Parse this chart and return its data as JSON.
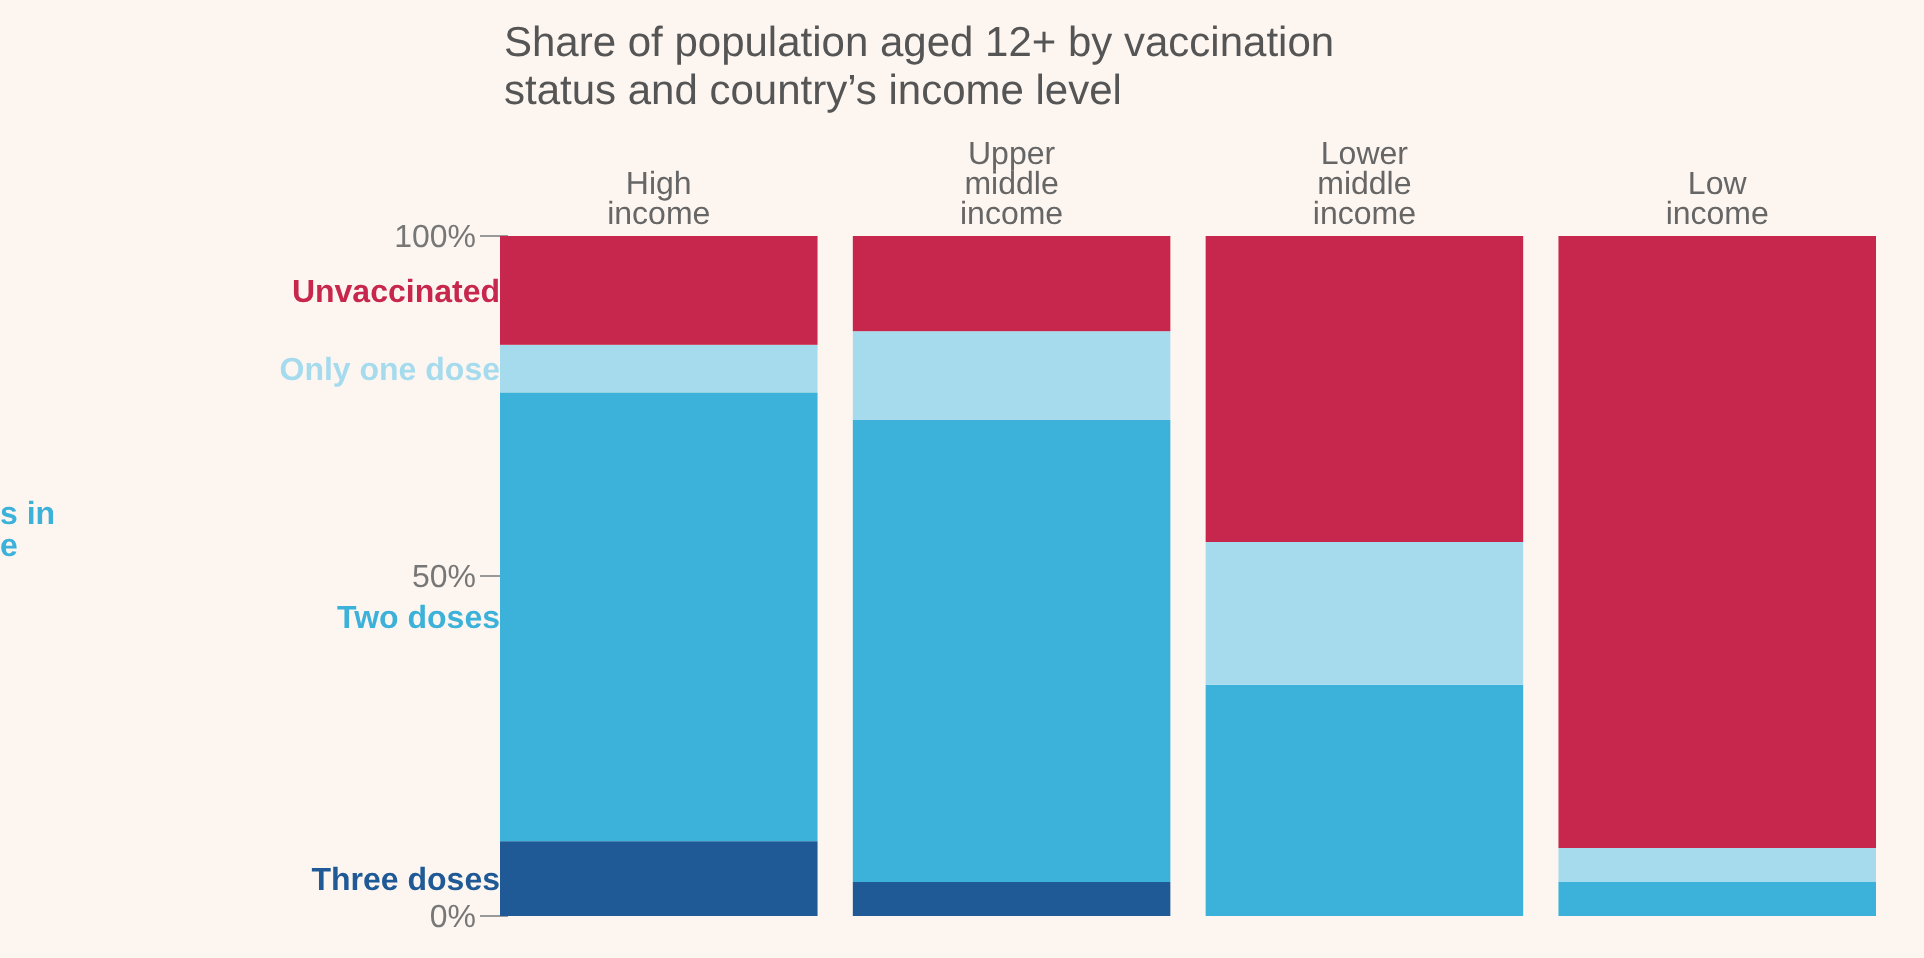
{
  "chart_data": {
    "type": "bar",
    "stacked": true,
    "title": "Share of population aged 12+ by vaccination status and country’s income level",
    "categories": [
      "High income",
      "Upper middle income",
      "Lower middle income",
      "Low income"
    ],
    "series": [
      {
        "name": "Three doses",
        "color": "#1f5a96",
        "values": [
          11,
          5,
          0,
          0
        ]
      },
      {
        "name": "Two doses",
        "color": "#3cb1da",
        "values": [
          66,
          68,
          34,
          5
        ]
      },
      {
        "name": "Only one dose",
        "color": "#a6dbee",
        "values": [
          7,
          13,
          21,
          5
        ]
      },
      {
        "name": "Unvaccinated",
        "color": "#c7274c",
        "values": [
          16,
          14,
          45,
          90
        ]
      }
    ],
    "ylim": [
      0,
      100
    ],
    "yticks": [
      {
        "value": 0,
        "label": "0%"
      },
      {
        "value": 50,
        "label": "50%"
      },
      {
        "value": 100,
        "label": "100%"
      }
    ],
    "legend": "left",
    "annotations": [
      "s in",
      "e"
    ]
  }
}
